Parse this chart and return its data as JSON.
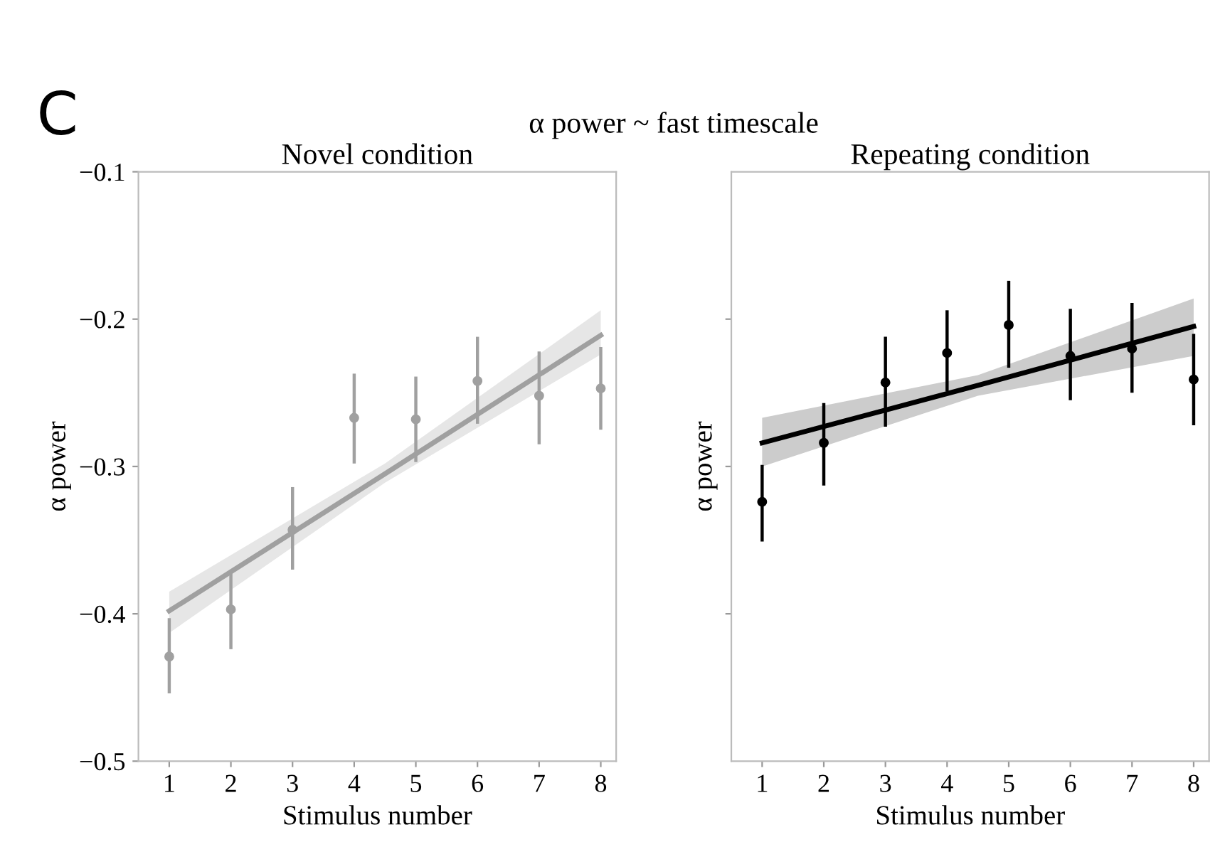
{
  "chart_data": [
    {
      "type": "scatter",
      "title": "Novel condition",
      "xlabel": "Stimulus number",
      "ylabel": "α power",
      "annotations": [
        "C",
        "α power ~ fast timescale"
      ],
      "xlim": [
        0.5,
        8.25
      ],
      "xticks": [
        1,
        2,
        3,
        4,
        5,
        6,
        7,
        8
      ],
      "ylim": [
        -0.5,
        -0.1
      ],
      "yticks": [
        {
          "value": -0.5,
          "label": "−0.5"
        },
        {
          "value": -0.4,
          "label": "−0.4"
        },
        {
          "value": -0.3,
          "label": "−0.3"
        },
        {
          "value": -0.2,
          "label": "−0.2"
        },
        {
          "value": -0.1,
          "label": "−0.1"
        }
      ],
      "grid": false,
      "series": [
        {
          "marker": "circle",
          "color": "#a0a0a0",
          "x": [
            1,
            2,
            3,
            4,
            5,
            6,
            7,
            8
          ],
          "values": [
            -0.429,
            -0.397,
            -0.343,
            -0.267,
            -0.268,
            -0.242,
            -0.252,
            -0.247
          ],
          "errors": [
            [
              -0.454,
              -0.403
            ],
            [
              -0.424,
              -0.372
            ],
            [
              -0.37,
              -0.314
            ],
            [
              -0.298,
              -0.237
            ],
            [
              -0.297,
              -0.239
            ],
            [
              -0.271,
              -0.212
            ],
            [
              -0.285,
              -0.222
            ],
            [
              -0.275,
              -0.219
            ]
          ]
        },
        {
          "type": "line",
          "color": "#a0a0a0",
          "x": [
            1,
            4.5,
            8
          ],
          "values": [
            -0.398,
            -0.305,
            -0.211
          ],
          "lower": [
            -0.413,
            -0.311,
            -0.224
          ],
          "upper": [
            -0.385,
            -0.298,
            -0.194
          ],
          "line_style": "solid"
        }
      ]
    },
    {
      "type": "scatter",
      "title": "Repeating condition",
      "xlabel": "Stimulus number",
      "ylabel": "α power",
      "xlim": [
        0.5,
        8.25
      ],
      "xticks": [
        1,
        2,
        3,
        4,
        5,
        6,
        7,
        8
      ],
      "ylim": [
        -0.5,
        -0.1
      ],
      "yticks": [
        -0.4,
        -0.3,
        -0.2
      ],
      "tick_labels": "x",
      "grid": false,
      "series": [
        {
          "marker": "circle",
          "color": "#000000",
          "x": [
            1,
            2,
            3,
            4,
            5,
            6,
            7,
            8
          ],
          "values": [
            -0.324,
            -0.284,
            -0.243,
            -0.223,
            -0.204,
            -0.225,
            -0.22,
            -0.241
          ],
          "errors": [
            [
              -0.351,
              -0.299
            ],
            [
              -0.313,
              -0.257
            ],
            [
              -0.273,
              -0.212
            ],
            [
              -0.249,
              -0.194
            ],
            [
              -0.233,
              -0.174
            ],
            [
              -0.255,
              -0.193
            ],
            [
              -0.25,
              -0.189
            ],
            [
              -0.272,
              -0.21
            ]
          ]
        },
        {
          "type": "line",
          "color": "#000000",
          "x": [
            1,
            4.5,
            8
          ],
          "values": [
            -0.284,
            -0.245,
            -0.205
          ],
          "lower": [
            -0.3,
            -0.252,
            -0.225
          ],
          "upper": [
            -0.267,
            -0.238,
            -0.186
          ],
          "line_style": "solid"
        }
      ]
    }
  ]
}
